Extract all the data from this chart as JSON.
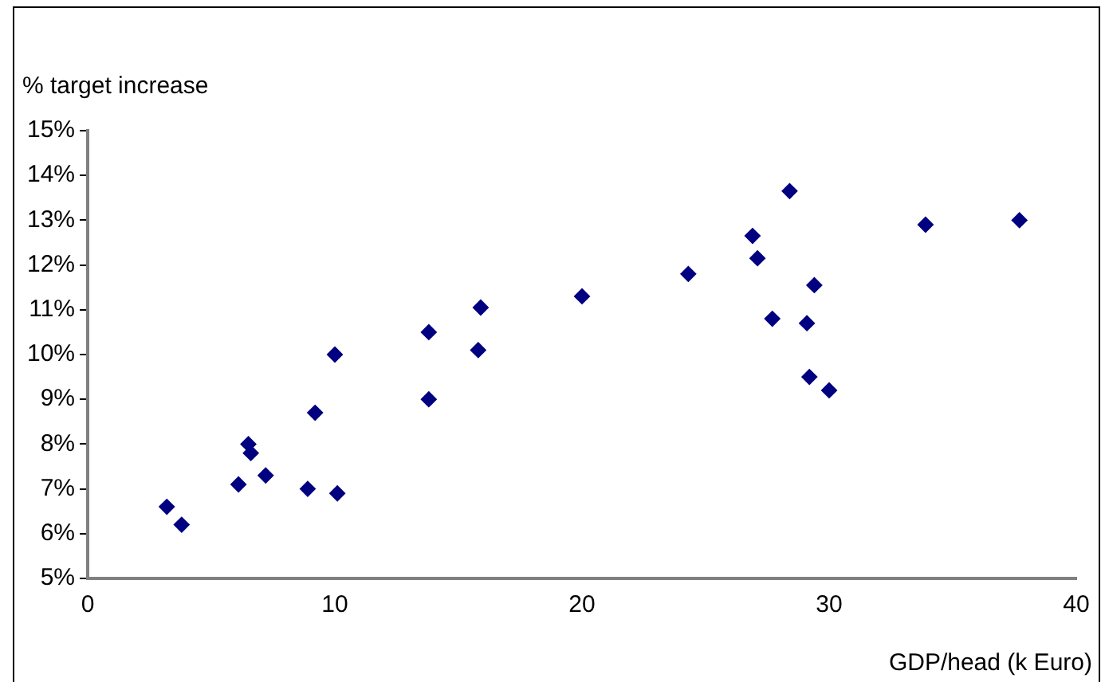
{
  "chart_data": {
    "type": "scatter",
    "xlabel": "GDP/head (k Euro)",
    "ylabel": "% target increase",
    "x": [
      3.2,
      3.8,
      6.1,
      6.5,
      6.6,
      7.2,
      8.9,
      9.2,
      10.0,
      10.1,
      13.8,
      13.8,
      15.8,
      15.9,
      20.0,
      24.3,
      26.9,
      27.1,
      27.7,
      28.4,
      29.1,
      29.2,
      29.4,
      30.0,
      33.9,
      37.7
    ],
    "series": [
      {
        "color": "#000080",
        "values": [
          6.6,
          6.2,
          7.1,
          8.0,
          7.8,
          7.3,
          7.0,
          8.7,
          10.0,
          6.9,
          10.5,
          9.0,
          10.1,
          11.05,
          11.3,
          11.8,
          12.65,
          12.15,
          10.8,
          13.65,
          10.7,
          9.5,
          11.55,
          9.2,
          12.9,
          13.0
        ]
      }
    ],
    "xlim": [
      0,
      40
    ],
    "xticks": [
      0,
      10,
      20,
      30,
      40
    ],
    "ylim": [
      5,
      15
    ],
    "yticks": [
      {
        "value": 5,
        "label": "5%"
      },
      {
        "value": 6,
        "label": "6%"
      },
      {
        "value": 7,
        "label": "7%"
      },
      {
        "value": 8,
        "label": "8%"
      },
      {
        "value": 9,
        "label": "9%"
      },
      {
        "value": 10,
        "label": "10%"
      },
      {
        "value": 11,
        "label": "11%"
      },
      {
        "value": 12,
        "label": "12%"
      },
      {
        "value": 13,
        "label": "13%"
      },
      {
        "value": 14,
        "label": "14%"
      },
      {
        "value": 15,
        "label": "15%"
      }
    ],
    "grid": false,
    "legend": false,
    "marker": "diamond"
  }
}
